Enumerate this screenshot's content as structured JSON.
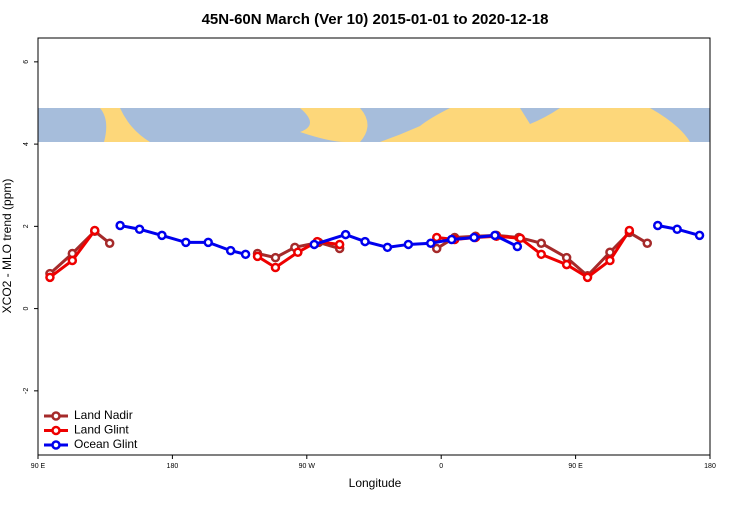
{
  "chart_data": {
    "type": "line",
    "title": "45N-60N March (Ver 10)   2015-01-01 to 2020-12-18",
    "x_label": "Longitude",
    "y_label": "XCO2 - MLO trend (ppm)",
    "xlim": [
      90,
      540
    ],
    "xticks": [
      {
        "value": 90,
        "label": "90 E"
      },
      180,
      {
        "value": 270,
        "label": "90 W"
      },
      {
        "value": 360,
        "label": "0"
      },
      {
        "value": 450,
        "label": "90 E"
      },
      {
        "value": 540,
        "label": "180"
      }
    ],
    "ylim": [
      -3.56,
      6.58
    ],
    "yticks": [
      -2,
      0,
      2,
      4,
      6
    ],
    "legend": "bottom-left",
    "series": [
      {
        "name": "Land Nadir",
        "color": "#a52a2a",
        "x": [
          98,
          113,
          128,
          138,
          null,
          237,
          249,
          262,
          278,
          292,
          null,
          357,
          369,
          383,
          397,
          412,
          427,
          444,
          458,
          473,
          486,
          498
        ],
        "values": [
          0.85,
          1.34,
          1.88,
          1.59,
          null,
          1.34,
          1.24,
          1.49,
          1.61,
          1.46,
          null,
          1.46,
          1.73,
          1.76,
          1.78,
          1.73,
          1.59,
          1.24,
          0.8,
          1.37,
          1.85,
          1.59
        ]
      },
      {
        "name": "Land Glint",
        "color": "#ee0000",
        "x": [
          98,
          113,
          128,
          null,
          237,
          249,
          264,
          277,
          292,
          null,
          357,
          369,
          383,
          397,
          413,
          427,
          444,
          458,
          473,
          486
        ],
        "values": [
          0.76,
          1.17,
          1.9,
          null,
          1.27,
          1.0,
          1.37,
          1.63,
          1.56,
          null,
          1.73,
          1.68,
          1.73,
          1.76,
          1.71,
          1.32,
          1.07,
          0.76,
          1.17,
          1.9
        ]
      },
      {
        "name": "Ocean Glint",
        "color": "#0000ee",
        "x": [
          145,
          158,
          173,
          189,
          204,
          219,
          229,
          null,
          275,
          296,
          309,
          324,
          338,
          353,
          367,
          382,
          396,
          411,
          null,
          505,
          518,
          533
        ],
        "values": [
          2.02,
          1.93,
          1.78,
          1.61,
          1.61,
          1.41,
          1.32,
          null,
          1.56,
          1.8,
          1.63,
          1.49,
          1.56,
          1.59,
          1.68,
          1.73,
          1.78,
          1.51,
          null,
          2.02,
          1.93,
          1.78
        ]
      }
    ]
  }
}
